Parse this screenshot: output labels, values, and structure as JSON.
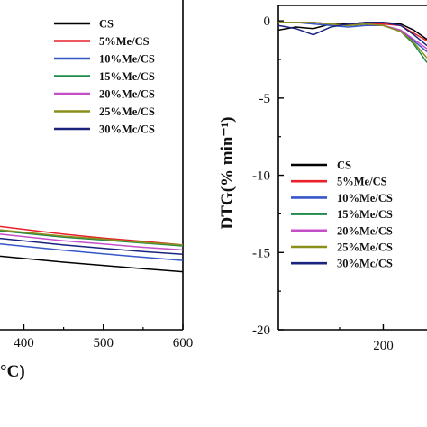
{
  "chart_data": [
    {
      "type": "line",
      "panel": "TG (left, cropped)",
      "xlabel_visible_fragment": "°C)",
      "x_ticks": [
        400,
        500,
        600
      ],
      "xlim": [
        370,
        600
      ],
      "ylim": [
        0,
        100
      ],
      "legend": [
        "CS",
        "5%Me/CS",
        "10%Me/CS",
        "15%Me/CS",
        "20%Me/CS",
        "25%Me/CS",
        "30%Mc/CS"
      ],
      "series": [
        {
          "name": "CS",
          "color": "#000000",
          "x": [
            370,
            450,
            500,
            550,
            600
          ],
          "y": [
            22.3,
            20.5,
            19.5,
            18.5,
            17.6
          ]
        },
        {
          "name": "5%Me/CS",
          "color": "#e8202a",
          "x": [
            370,
            450,
            500,
            550,
            600
          ],
          "y": [
            31.3,
            29.0,
            27.8,
            26.8,
            25.7
          ]
        },
        {
          "name": "10%Me/CS",
          "color": "#3557c8",
          "x": [
            370,
            450,
            500,
            550,
            600
          ],
          "y": [
            26.0,
            24.1,
            23.0,
            22.0,
            21.0
          ]
        },
        {
          "name": "15%Me/CS",
          "color": "#1f8a4a",
          "x": [
            370,
            450,
            500,
            550,
            600
          ],
          "y": [
            30.0,
            28.1,
            27.2,
            26.3,
            25.4
          ]
        },
        {
          "name": "20%Me/CS",
          "color": "#c44fc8",
          "x": [
            370,
            450,
            500,
            550,
            600
          ],
          "y": [
            29.0,
            27.0,
            26.0,
            25.0,
            24.2
          ]
        },
        {
          "name": "25%Me/CS",
          "color": "#8a8f1a",
          "x": [
            370,
            450,
            500,
            550,
            600
          ],
          "y": [
            30.3,
            28.4,
            27.5,
            26.5,
            25.7
          ]
        },
        {
          "name": "30%Mc/CS",
          "color": "#1a237e",
          "x": [
            370,
            450,
            500,
            550,
            600
          ],
          "y": [
            27.7,
            25.7,
            24.7,
            23.7,
            22.9
          ]
        }
      ]
    },
    {
      "type": "line",
      "panel": "DTG (right, cropped)",
      "ylabel": "DTG(% min⁻¹)",
      "x_ticks": [
        200
      ],
      "y_ticks": [
        0,
        -5,
        -10,
        -15,
        -20
      ],
      "xlim": [
        80,
        250
      ],
      "ylim": [
        -20,
        1
      ],
      "legend": [
        "CS",
        "5%Me/CS",
        "10%Me/CS",
        "15%Me/CS",
        "20%Me/CS",
        "25%Me/CS",
        "30%Mc/CS"
      ],
      "series": [
        {
          "name": "CS",
          "color": "#000000",
          "x": [
            80,
            100,
            120,
            140,
            160,
            180,
            200,
            220,
            235,
            250
          ],
          "y": [
            -0.6,
            -0.4,
            -0.5,
            -0.2,
            -0.2,
            -0.1,
            -0.1,
            -0.2,
            -0.6,
            -1.2
          ]
        },
        {
          "name": "5%Me/CS",
          "color": "#e8202a",
          "x": [
            80,
            100,
            120,
            140,
            160,
            180,
            200,
            220,
            235,
            250
          ],
          "y": [
            -0.1,
            -0.1,
            -0.1,
            -0.2,
            -0.3,
            -0.2,
            -0.2,
            -0.3,
            -0.8,
            -1.3
          ]
        },
        {
          "name": "10%Me/CS",
          "color": "#3557c8",
          "x": [
            80,
            100,
            120,
            140,
            160,
            180,
            200,
            220,
            235,
            250
          ],
          "y": [
            -0.1,
            -0.1,
            -0.2,
            -0.3,
            -0.4,
            -0.3,
            -0.3,
            -0.6,
            -1.3,
            -2.0
          ]
        },
        {
          "name": "15%Me/CS",
          "color": "#1f8a4a",
          "x": [
            80,
            100,
            120,
            140,
            160,
            180,
            200,
            220,
            235,
            250
          ],
          "y": [
            -0.1,
            -0.1,
            -0.1,
            -0.2,
            -0.3,
            -0.2,
            -0.3,
            -0.7,
            -1.5,
            -2.7
          ]
        },
        {
          "name": "20%Me/CS",
          "color": "#c44fc8",
          "x": [
            80,
            100,
            120,
            140,
            160,
            180,
            200,
            220,
            235,
            250
          ],
          "y": [
            -0.1,
            -0.1,
            -0.1,
            -0.2,
            -0.3,
            -0.2,
            -0.3,
            -0.6,
            -1.2,
            -1.8
          ]
        },
        {
          "name": "25%Me/CS",
          "color": "#8a8f1a",
          "x": [
            80,
            100,
            120,
            140,
            160,
            180,
            200,
            220,
            235,
            250
          ],
          "y": [
            -0.1,
            -0.1,
            -0.1,
            -0.2,
            -0.3,
            -0.2,
            -0.3,
            -0.7,
            -1.4,
            -2.4
          ]
        },
        {
          "name": "30%Mc/CS",
          "color": "#1a237e",
          "x": [
            80,
            100,
            120,
            140,
            160,
            180,
            200,
            220,
            235,
            250
          ],
          "y": [
            -0.3,
            -0.5,
            -0.9,
            -0.4,
            -0.2,
            -0.1,
            -0.1,
            -0.3,
            -0.9,
            -1.6
          ]
        }
      ]
    }
  ]
}
